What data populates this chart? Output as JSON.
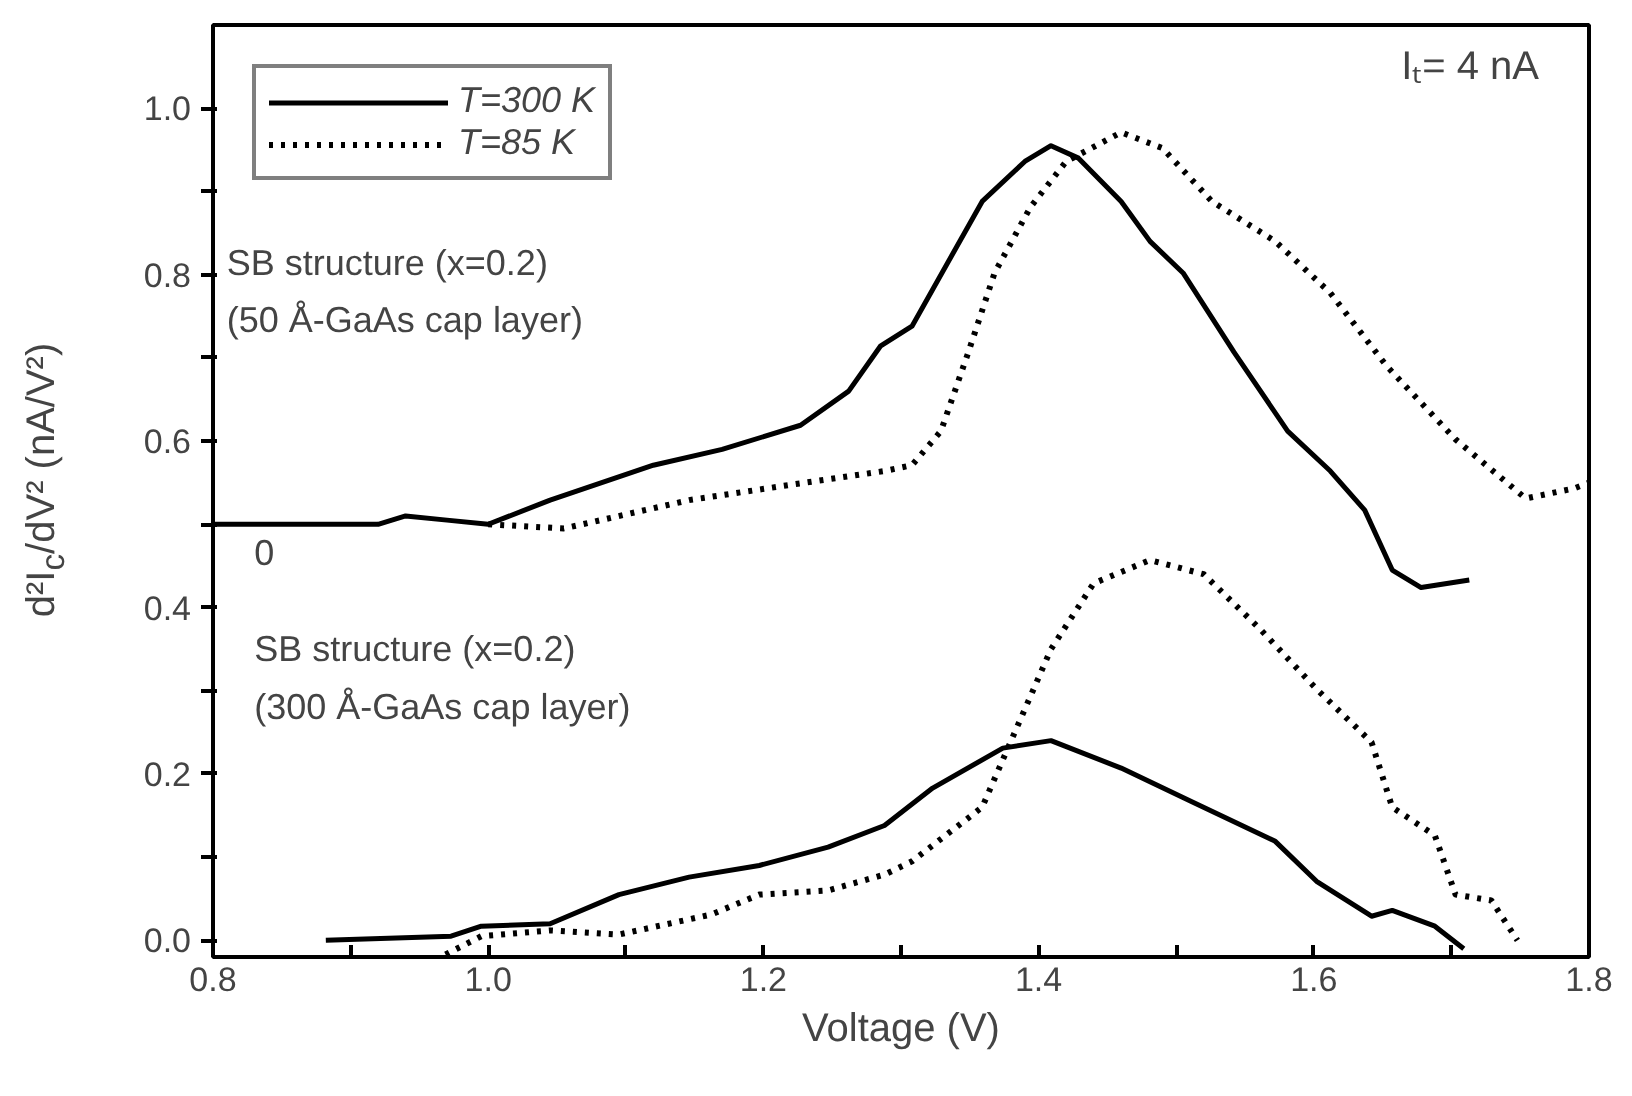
{
  "chart_data": {
    "type": "line",
    "xlabel": "Voltage (V)",
    "ylabel": "d²I$_{c}$/dV² (nA/V²)",
    "xlim": [
      0.8,
      1.8
    ],
    "ylim": [
      -0.02,
      1.1
    ],
    "xticks": [
      0.8,
      {
        "value": 0.9,
        "label": null
      },
      {
        "value": 1.0,
        "label": "1.0"
      },
      {
        "value": 1.1,
        "label": null
      },
      1.2,
      {
        "value": 1.3,
        "label": null
      },
      1.4,
      {
        "value": 1.5,
        "label": null
      },
      1.6,
      {
        "value": 1.7,
        "label": null
      },
      1.8
    ],
    "yticks": [
      {
        "value": 0.0,
        "label": "0.0"
      },
      {
        "value": 0.1,
        "label": null
      },
      0.2,
      {
        "value": 0.3,
        "label": null
      },
      0.4,
      {
        "value": 0.5,
        "label": null
      },
      0.6,
      {
        "value": 0.7,
        "label": null
      },
      0.8,
      {
        "value": 0.9,
        "label": null
      },
      {
        "value": 1.0,
        "label": "1.0"
      }
    ],
    "grid": false,
    "legend": "top left",
    "series": [
      {
        "name": "T=300 K",
        "color": "#000000",
        "line_style": "solid",
        "x": [
          0.8,
          0.92,
          0.94,
          0.97,
          1.0,
          1.045,
          1.12,
          1.17,
          1.227,
          1.262,
          1.285,
          1.308,
          1.359,
          1.39,
          1.409,
          1.429,
          1.46,
          1.481,
          1.505,
          1.542,
          1.581,
          1.612,
          1.637,
          1.657,
          1.678,
          1.713
        ],
        "values": [
          0.5,
          0.5,
          0.51,
          0.505,
          0.5,
          0.529,
          0.571,
          0.59,
          0.619,
          0.66,
          0.714,
          0.738,
          0.888,
          0.936,
          0.955,
          0.94,
          0.888,
          0.84,
          0.802,
          0.707,
          0.612,
          0.564,
          0.517,
          0.445,
          0.424,
          0.433
        ]
      },
      {
        "name": "T=85 K",
        "color": "#000000",
        "line_style": "dotted",
        "x": [
          1.0,
          1.055,
          1.146,
          1.222,
          1.288,
          1.308,
          1.329,
          1.349,
          1.368,
          1.394,
          1.42,
          1.46,
          1.49,
          1.526,
          1.572,
          1.612,
          1.653,
          1.703,
          1.754,
          1.789,
          1.8
        ],
        "values": [
          0.5,
          0.495,
          0.529,
          0.548,
          0.564,
          0.571,
          0.612,
          0.707,
          0.802,
          0.881,
          0.936,
          0.971,
          0.952,
          0.888,
          0.84,
          0.778,
          0.69,
          0.602,
          0.531,
          0.543,
          0.55
        ]
      },
      {
        "color": "#000000",
        "line_style": "solid",
        "x": [
          0.882,
          0.973,
          0.995,
          1.045,
          1.095,
          1.146,
          1.197,
          1.247,
          1.288,
          1.323,
          1.374,
          1.409,
          1.46,
          1.511,
          1.572,
          1.602,
          1.642,
          1.657,
          1.688,
          1.709
        ],
        "values": [
          0.0,
          0.005,
          0.017,
          0.02,
          0.055,
          0.076,
          0.09,
          0.112,
          0.138,
          0.183,
          0.231,
          0.24,
          0.207,
          0.167,
          0.119,
          0.071,
          0.029,
          0.036,
          0.017,
          -0.01
        ]
      },
      {
        "color": "#000000",
        "line_style": "dotted",
        "x": [
          0.969,
          0.995,
          1.045,
          1.095,
          1.162,
          1.197,
          1.247,
          1.288,
          1.308,
          1.359,
          1.384,
          1.409,
          1.44,
          1.481,
          1.52,
          1.561,
          1.602,
          1.642,
          1.657,
          1.688,
          1.703,
          1.729,
          1.748
        ],
        "values": [
          -0.017,
          0.005,
          0.012,
          0.007,
          0.031,
          0.055,
          0.06,
          0.079,
          0.095,
          0.16,
          0.255,
          0.35,
          0.429,
          0.457,
          0.44,
          0.374,
          0.302,
          0.238,
          0.16,
          0.126,
          0.055,
          0.048,
          0.0
        ]
      }
    ],
    "annotations": [
      "SB structure (x=0.2)",
      "(50 Å-GaAs cap layer)",
      "0",
      "SB structure (x=0.2)",
      "(300 Å-GaAs cap layer)",
      "Iₜ= 4 nA"
    ]
  }
}
